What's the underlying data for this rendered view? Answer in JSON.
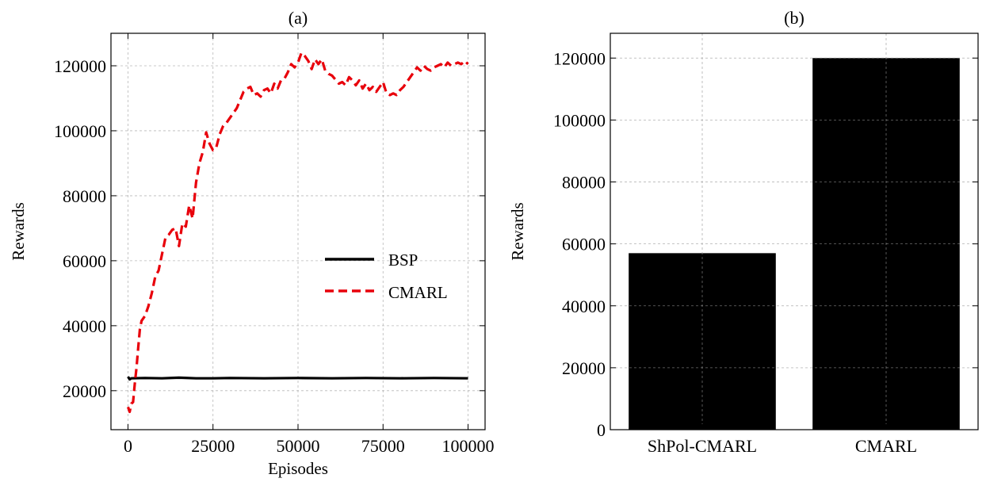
{
  "chart_data": [
    {
      "type": "line",
      "title": "(a)",
      "xlabel": "Episodes",
      "ylabel": "Rewards",
      "xlim": [
        -5000,
        105000
      ],
      "ylim": [
        8000,
        130000
      ],
      "xticks": [
        0,
        25000,
        50000,
        75000,
        100000
      ],
      "yticks": [
        20000,
        40000,
        60000,
        80000,
        100000,
        120000
      ],
      "grid": true,
      "legend_position": "center-right",
      "series": [
        {
          "name": "BSP",
          "color": "#000000",
          "style": "solid",
          "x": [
            0,
            500,
            1000,
            5000,
            10000,
            15000,
            20000,
            25000,
            30000,
            40000,
            50000,
            60000,
            70000,
            80000,
            90000,
            100000
          ],
          "y": [
            24300,
            23500,
            23800,
            23900,
            23800,
            24000,
            23800,
            23800,
            23900,
            23800,
            23900,
            23800,
            23900,
            23800,
            23900,
            23800
          ]
        },
        {
          "name": "CMARL",
          "color": "#e8000b",
          "style": "dashed",
          "x": [
            0,
            500,
            1000,
            1500,
            2000,
            2500,
            3000,
            3500,
            4000,
            5000,
            6000,
            7000,
            8000,
            9000,
            10000,
            11000,
            12000,
            13000,
            14000,
            15000,
            16000,
            17000,
            18000,
            19000,
            20000,
            21000,
            22000,
            23000,
            24000,
            25000,
            26000,
            27000,
            28000,
            29000,
            30000,
            32000,
            34000,
            35000,
            36000,
            37000,
            38000,
            39000,
            40000,
            41000,
            42000,
            43000,
            44000,
            45000,
            46000,
            47000,
            48000,
            49000,
            50000,
            51000,
            52000,
            53000,
            54000,
            55000,
            56000,
            57000,
            58000,
            59000,
            60000,
            62000,
            63000,
            64000,
            65000,
            66000,
            67000,
            68000,
            69000,
            70000,
            71000,
            72000,
            73000,
            74000,
            75000,
            76000,
            77000,
            78000,
            79000,
            80000,
            81000,
            82000,
            83000,
            84000,
            85000,
            86000,
            87000,
            88000,
            89000,
            90000,
            91000,
            92000,
            93000,
            94000,
            95000,
            96000,
            97000,
            98000,
            99000,
            100000
          ],
          "y": [
            15000,
            13500,
            16000,
            16500,
            22000,
            27000,
            33000,
            39000,
            41500,
            43000,
            46000,
            50000,
            55000,
            57000,
            62000,
            67000,
            68000,
            69500,
            70000,
            64500,
            71500,
            70500,
            77000,
            73000,
            84000,
            90000,
            93500,
            99500,
            96000,
            94000,
            95000,
            99000,
            101500,
            102500,
            104000,
            107000,
            112000,
            113000,
            113500,
            111000,
            111500,
            110500,
            112500,
            113000,
            111500,
            114500,
            113000,
            115500,
            116000,
            118000,
            120500,
            119500,
            121000,
            124000,
            123000,
            121500,
            119000,
            122000,
            120500,
            122000,
            118500,
            117500,
            117000,
            114500,
            115000,
            114000,
            116500,
            115500,
            114000,
            115500,
            113000,
            114500,
            112500,
            113500,
            112000,
            113500,
            115000,
            111500,
            111000,
            111500,
            111000,
            112500,
            113500,
            115000,
            116500,
            118000,
            119500,
            118500,
            120000,
            119000,
            118500,
            119500,
            120000,
            120500,
            119500,
            121000,
            120000,
            120500,
            121000,
            120500,
            121500,
            120500
          ]
        }
      ]
    },
    {
      "type": "bar",
      "title": "(b)",
      "xlabel": "",
      "ylabel": "Rewards",
      "ylim": [
        0,
        128000
      ],
      "yticks": [
        0,
        20000,
        40000,
        60000,
        80000,
        100000,
        120000
      ],
      "grid": true,
      "categories": [
        "ShPol-CMARL",
        "CMARL"
      ],
      "values": [
        57000,
        120000
      ],
      "color": "#000000"
    }
  ]
}
